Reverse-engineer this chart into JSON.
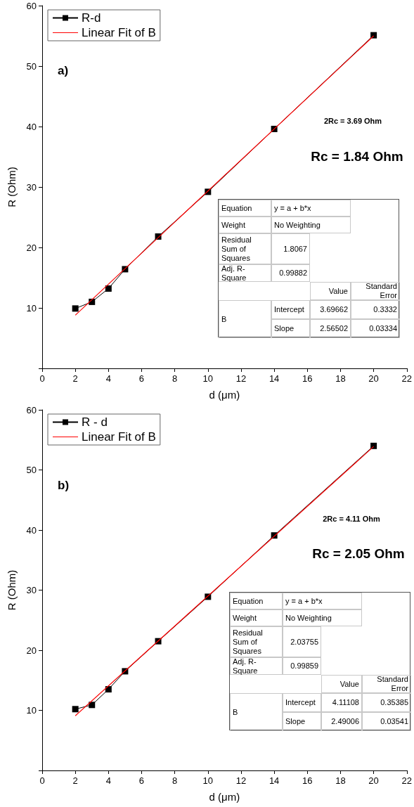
{
  "chart_data": [
    {
      "type": "line",
      "xlabel": "d (μm)",
      "ylabel": "R (Ohm)",
      "xlim": [
        0,
        22
      ],
      "xticks": [
        0,
        2,
        4,
        6,
        8,
        10,
        12,
        14,
        16,
        18,
        20,
        22
      ],
      "ylim": [
        0,
        60
      ],
      "yticks": [
        {
          "value": 0,
          "label": null
        },
        10,
        20,
        30,
        40,
        50,
        60
      ],
      "legend": "top left",
      "series": [
        {
          "name": "R-d",
          "color": "#000000",
          "marker": "square",
          "x": [
            2,
            3,
            4,
            5,
            7,
            10,
            14,
            20
          ],
          "values": [
            9.9,
            11,
            13.2,
            16.4,
            21.8,
            29.2,
            39.6,
            55.1
          ]
        },
        {
          "name": "Linear Fit of B",
          "color": "#ff0000",
          "marker": "none",
          "x": [
            2,
            20
          ],
          "values": [
            8.8,
            55.0
          ]
        }
      ],
      "annotations": [
        "a)",
        "2Rc = 3.69 Ohm",
        "Rc = 1.84 Ohm",
        "Equation",
        "y = a + b*x",
        "Weight",
        "No Weighting",
        "Residual Sum of Squares",
        "1.8067",
        "Adj. R-Square",
        "0.99882",
        "Value",
        "Standard Error",
        "B",
        "Intercept",
        "3.69662",
        "0.3332",
        "Slope",
        "2.56502",
        "0.03334"
      ]
    },
    {
      "type": "line",
      "xlabel": "d (μm)",
      "ylabel": "R (Ohm)",
      "xlim": [
        0,
        22
      ],
      "xticks": [
        0,
        2,
        4,
        6,
        8,
        10,
        12,
        14,
        16,
        18,
        20,
        22
      ],
      "ylim": [
        0,
        60
      ],
      "yticks": [
        {
          "value": 0,
          "label": null
        },
        10,
        20,
        30,
        40,
        50,
        60
      ],
      "legend": "top left",
      "series": [
        {
          "name": "R - d",
          "color": "#000000",
          "marker": "square",
          "x": [
            2,
            3,
            4,
            5,
            7,
            10,
            14,
            20
          ],
          "values": [
            10.2,
            10.9,
            13.5,
            16.5,
            21.5,
            28.9,
            39.1,
            54.0
          ]
        },
        {
          "name": "Linear Fit of B",
          "color": "#ff0000",
          "marker": "none",
          "x": [
            2,
            20
          ],
          "values": [
            9.1,
            53.9
          ]
        }
      ],
      "annotations": [
        "b)",
        "2Rc = 4.11 Ohm",
        "Rc = 2.05 Ohm",
        "Equation",
        "y = a + b*x",
        "Weight",
        "No Weighting",
        "Residual Sum of Squares",
        "2.03755",
        "Adj. R-Square",
        "0.99859",
        "Value",
        "Standard Error",
        "B",
        "Intercept",
        "4.11108",
        "0.35385",
        "Slope",
        "2.49006",
        "0.03541"
      ]
    }
  ]
}
